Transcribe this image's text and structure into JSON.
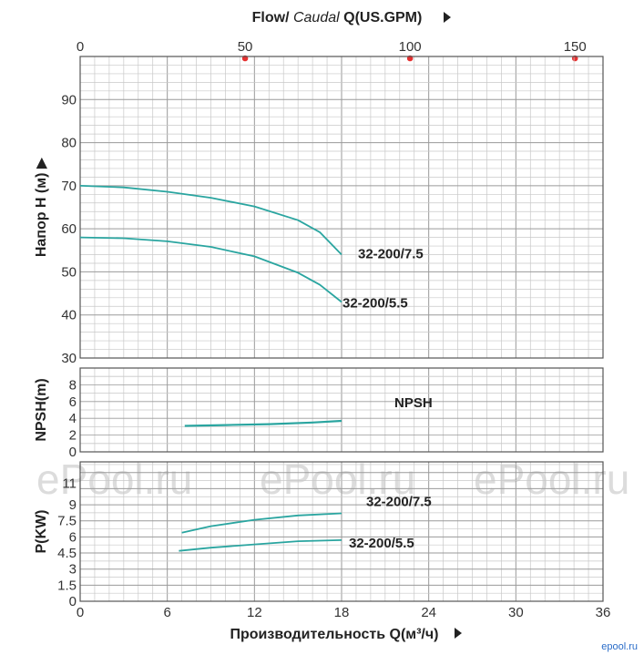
{
  "chart_data": {
    "type": "line",
    "top_axis": {
      "title_prefix": "Flow/ ",
      "title_italic": "Caudal",
      "title_suffix": " Q(US.GPM)",
      "ticks": [
        0,
        50,
        100,
        150
      ],
      "range": [
        0,
        158.5
      ]
    },
    "bottom_axis": {
      "title": "Производительность Q(м³/ч)",
      "ticks": [
        0,
        6,
        12,
        18,
        24,
        30,
        36
      ],
      "range": [
        0,
        36
      ]
    },
    "panels": [
      {
        "id": "head",
        "ylabel": "Напор H (м)",
        "ylim": [
          30,
          100
        ],
        "yticks": [
          30,
          40,
          50,
          60,
          70,
          80,
          90
        ],
        "series": [
          {
            "name": "32-200/7.5",
            "x": [
              0,
              3,
              6,
              9,
              12,
              15,
              16.5,
              18
            ],
            "y": [
              70,
              69.6,
              68.6,
              67.2,
              65.2,
              62,
              59.2,
              54
            ]
          },
          {
            "name": "32-200/5.5",
            "x": [
              0,
              3,
              6,
              9,
              12,
              15,
              16.5,
              18
            ],
            "y": [
              58,
              57.8,
              57.1,
              55.8,
              53.6,
              49.8,
              47,
              43
            ]
          }
        ]
      },
      {
        "id": "npsh",
        "ylabel": "NPSH(m)",
        "ylim": [
          0,
          10
        ],
        "yticks": [
          0,
          2,
          4,
          6,
          8
        ],
        "series": [
          {
            "name": "NPSH",
            "x": [
              7.2,
              10,
              13,
              16,
              18
            ],
            "y": [
              3.1,
              3.2,
              3.3,
              3.5,
              3.7
            ]
          }
        ]
      },
      {
        "id": "power",
        "ylabel": "P(KW)",
        "ylim": [
          0,
          13
        ],
        "yticks": [
          0,
          1.5,
          3,
          4.5,
          6,
          7.5,
          9,
          11
        ],
        "series": [
          {
            "name": "32-200/7.5",
            "x": [
              7,
              9,
              12,
              15,
              18
            ],
            "y": [
              6.4,
              7,
              7.6,
              8,
              8.2
            ]
          },
          {
            "name": "32-200/5.5",
            "x": [
              6.8,
              9,
              12,
              15,
              18
            ],
            "y": [
              4.7,
              5,
              5.3,
              5.6,
              5.7
            ]
          }
        ]
      }
    ],
    "curve_color": "#2aa5a0",
    "marker_color": "#e53030",
    "grid": true
  },
  "watermark": "ePool.ru",
  "corner_mark": "epool.ru"
}
